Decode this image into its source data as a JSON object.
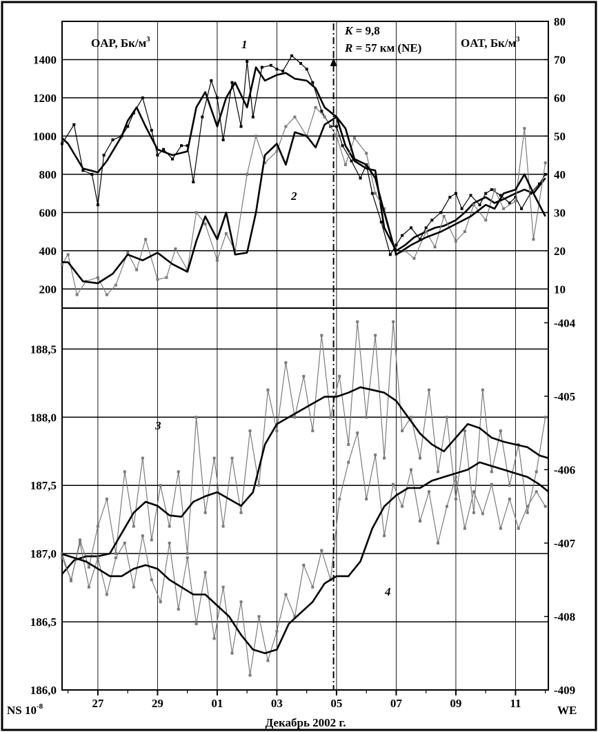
{
  "chart_data": [
    {
      "type": "line",
      "panel": "top",
      "left_axis_label_text": "OAP, Бк/м",
      "left_axis_label_sup": "3",
      "right_axis_label_text": "OAT, Бк/м",
      "right_axis_label_sup": "3",
      "annotation_line1_var": "K",
      "annotation_line1_rest": " = 9,8",
      "annotation_line2_var": "R",
      "annotation_line2_rest": " = 57 км (NE)",
      "curve_label_1": "1",
      "curve_label_2": "2",
      "y_left_ticks": [
        "200",
        "400",
        "600",
        "800",
        "1000",
        "1200",
        "1400"
      ],
      "y_left_lim": [
        100,
        1600
      ],
      "y_right_ticks": [
        "10",
        "20",
        "30",
        "40",
        "50",
        "60",
        "70",
        "80"
      ],
      "y_right_lim": [
        5,
        80
      ],
      "x_lim": [
        25.8,
        42.1
      ],
      "grid": true,
      "series": [
        {
          "id": "1-raw",
          "x": [
            25.8,
            26.2,
            26.5,
            26.8,
            27.0,
            27.2,
            27.5,
            27.8,
            28.0,
            28.2,
            28.5,
            28.8,
            29.0,
            29.2,
            29.5,
            29.8,
            30.0,
            30.2,
            30.5,
            30.8,
            31.0,
            31.2,
            31.5,
            31.8,
            32.0,
            32.2,
            32.5,
            32.8,
            33.0,
            33.2,
            33.5,
            33.8,
            34.0,
            34.2,
            34.5,
            34.8,
            35.0,
            35.2,
            35.5,
            35.8,
            36.0,
            36.2,
            36.5,
            36.8,
            37.0,
            37.2,
            37.5,
            37.8,
            38.0,
            38.2,
            38.5,
            38.8,
            39.0,
            39.2,
            39.5,
            39.8,
            40.0,
            40.2,
            40.5,
            40.8,
            41.0,
            41.2,
            41.5,
            41.8,
            42.0
          ],
          "y": [
            960,
            1060,
            820,
            800,
            640,
            900,
            980,
            1000,
            1050,
            1120,
            1200,
            1030,
            900,
            930,
            880,
            950,
            950,
            760,
            1100,
            1290,
            1200,
            980,
            1280,
            1050,
            1390,
            1100,
            1360,
            1370,
            1350,
            1340,
            1420,
            1380,
            1350,
            1280,
            1130,
            1050,
            1050,
            950,
            870,
            780,
            850,
            700,
            550,
            380,
            430,
            480,
            520,
            460,
            520,
            560,
            600,
            680,
            700,
            620,
            690,
            640,
            700,
            720,
            690,
            650,
            680,
            620,
            700,
            750,
            800
          ],
          "color": "#000000"
        },
        {
          "id": "1-smooth",
          "x": [
            25.8,
            26.0,
            26.5,
            27.0,
            27.3,
            27.8,
            28.0,
            28.3,
            28.6,
            29.0,
            29.5,
            30.0,
            30.3,
            30.6,
            31.0,
            31.3,
            31.6,
            32.0,
            32.3,
            32.6,
            33.0,
            33.3,
            33.6,
            34.0,
            34.3,
            34.6,
            35.0,
            35.3,
            35.6,
            36.0,
            36.3,
            36.6,
            37.0,
            37.3,
            37.6,
            38.0,
            38.3,
            38.6,
            39.0,
            39.3,
            39.6,
            40.0,
            40.3,
            40.6,
            41.0,
            41.3,
            41.6,
            42.0
          ],
          "y": [
            990,
            960,
            830,
            810,
            870,
            1000,
            1080,
            1150,
            1050,
            930,
            900,
            920,
            1150,
            1230,
            1050,
            1200,
            1280,
            1150,
            1360,
            1290,
            1320,
            1330,
            1300,
            1290,
            1250,
            1150,
            1100,
            950,
            870,
            830,
            820,
            520,
            400,
            430,
            470,
            500,
            520,
            530,
            560,
            600,
            650,
            680,
            650,
            670,
            700,
            720,
            700,
            780
          ],
          "color": "#000000"
        },
        {
          "id": "2-raw",
          "x": [
            25.8,
            26.0,
            26.3,
            26.6,
            27.0,
            27.3,
            27.6,
            28.0,
            28.3,
            28.6,
            29.0,
            29.3,
            29.6,
            30.0,
            30.3,
            30.6,
            31.0,
            31.3,
            31.6,
            32.0,
            32.3,
            32.6,
            33.0,
            33.3,
            33.6,
            34.0,
            34.3,
            34.6,
            35.0,
            35.3,
            35.6,
            36.0,
            36.3,
            36.6,
            37.0,
            37.3,
            37.6,
            38.0,
            38.3,
            38.6,
            39.0,
            39.3,
            39.6,
            40.0,
            40.3,
            40.6,
            41.0,
            41.3,
            41.6,
            42.0
          ],
          "y": [
            330,
            380,
            170,
            240,
            260,
            170,
            220,
            390,
            300,
            460,
            250,
            260,
            410,
            300,
            600,
            540,
            350,
            490,
            400,
            800,
            1000,
            860,
            920,
            1050,
            1100,
            1000,
            1150,
            1100,
            1000,
            850,
            990,
            910,
            700,
            620,
            380,
            400,
            360,
            500,
            420,
            580,
            450,
            500,
            640,
            560,
            720,
            620,
            660,
            1040,
            460,
            860
          ],
          "color": "#7a7a7a"
        },
        {
          "id": "2-smooth",
          "x": [
            25.8,
            26.0,
            26.5,
            27.0,
            27.5,
            28.0,
            28.5,
            29.0,
            29.5,
            30.0,
            30.3,
            30.6,
            31.0,
            31.3,
            31.6,
            32.0,
            32.3,
            32.6,
            33.0,
            33.3,
            33.6,
            34.0,
            34.3,
            34.6,
            35.0,
            35.3,
            35.6,
            36.0,
            36.3,
            36.6,
            37.0,
            37.5,
            38.0,
            38.5,
            39.0,
            39.5,
            40.0,
            40.3,
            40.6,
            41.0,
            41.3,
            41.6,
            42.0
          ],
          "y": [
            340,
            340,
            240,
            230,
            280,
            380,
            350,
            390,
            330,
            290,
            450,
            580,
            460,
            600,
            380,
            390,
            600,
            900,
            960,
            850,
            1020,
            1000,
            940,
            1060,
            1100,
            1040,
            880,
            850,
            780,
            600,
            380,
            430,
            470,
            500,
            540,
            580,
            640,
            620,
            700,
            720,
            800,
            700,
            580
          ],
          "color": "#000000"
        }
      ]
    },
    {
      "type": "line",
      "panel": "bottom",
      "left_axis_label": "NS 10",
      "left_axis_label_sup": "-8",
      "right_axis_label": "WE",
      "x_axis_label": "Декабрь 2002 г.",
      "x_tick_labels": [
        "27",
        "29",
        "01",
        "03",
        "05",
        "07",
        "09",
        "11"
      ],
      "x_tick_values": [
        27,
        29,
        31,
        33,
        35,
        37,
        39,
        41
      ],
      "y_left_ticks": [
        "186,0",
        "186,5",
        "187,0",
        "187,5",
        "188,0",
        "188,5"
      ],
      "y_left_lim": [
        186.0,
        188.8
      ],
      "y_right_ticks": [
        "-404",
        "-405",
        "-406",
        "-407",
        "-408",
        "-409"
      ],
      "y_right_lim": [
        -409,
        -403.8
      ],
      "x_lim": [
        25.8,
        42.1
      ],
      "event_marker_x": 34.9,
      "curve_label_3": "3",
      "curve_label_4": "4",
      "grid": true,
      "series": [
        {
          "id": "3-raw",
          "x": [
            25.8,
            26.1,
            26.4,
            26.7,
            27.0,
            27.3,
            27.6,
            27.9,
            28.2,
            28.5,
            28.8,
            29.1,
            29.4,
            29.7,
            30.0,
            30.3,
            30.6,
            30.9,
            31.2,
            31.5,
            31.8,
            32.1,
            32.4,
            32.7,
            33.0,
            33.3,
            33.6,
            33.9,
            34.2,
            34.5,
            34.8,
            35.1,
            35.4,
            35.7,
            36.0,
            36.3,
            36.6,
            36.9,
            37.2,
            37.5,
            37.8,
            38.1,
            38.4,
            38.7,
            39.0,
            39.3,
            39.6,
            39.9,
            40.2,
            40.5,
            40.8,
            41.1,
            41.4,
            41.7,
            42.0
          ],
          "y": [
            187.0,
            186.8,
            187.1,
            186.9,
            187.2,
            187.4,
            187.0,
            187.6,
            187.2,
            187.7,
            187.1,
            187.5,
            187.2,
            187.6,
            187.0,
            188.0,
            187.3,
            187.7,
            187.2,
            187.7,
            187.3,
            187.9,
            187.5,
            188.2,
            187.9,
            188.4,
            188.0,
            188.3,
            187.9,
            188.6,
            188.0,
            188.3,
            187.8,
            188.7,
            188.0,
            188.6,
            187.7,
            188.7,
            187.9,
            188.0,
            187.7,
            188.2,
            187.6,
            188.0,
            187.4,
            187.9,
            187.3,
            188.2,
            187.6,
            187.9,
            187.5,
            187.8,
            187.3,
            187.6,
            188.0
          ],
          "color": "#7a7a7a"
        },
        {
          "id": "3-smooth",
          "x": [
            25.8,
            26.2,
            26.6,
            27.0,
            27.4,
            27.8,
            28.2,
            28.6,
            29.0,
            29.4,
            29.8,
            30.2,
            30.6,
            31.0,
            31.4,
            31.8,
            32.2,
            32.6,
            33.0,
            33.4,
            33.8,
            34.2,
            34.6,
            35.0,
            35.4,
            35.8,
            36.2,
            36.6,
            37.0,
            37.4,
            37.8,
            38.2,
            38.6,
            39.0,
            39.4,
            39.8,
            40.2,
            40.6,
            41.0,
            41.4,
            41.8,
            42.1
          ],
          "y": [
            186.85,
            186.95,
            186.98,
            186.98,
            187.0,
            187.15,
            187.3,
            187.38,
            187.35,
            187.28,
            187.27,
            187.38,
            187.42,
            187.45,
            187.4,
            187.35,
            187.45,
            187.8,
            187.95,
            188.0,
            188.05,
            188.1,
            188.15,
            188.15,
            188.18,
            188.22,
            188.2,
            188.18,
            188.12,
            188.0,
            187.88,
            187.8,
            187.75,
            187.85,
            187.95,
            187.92,
            187.85,
            187.82,
            187.8,
            187.78,
            187.72,
            187.7
          ],
          "color": "#000000"
        },
        {
          "id": "4-raw",
          "x": [
            25.8,
            26.1,
            26.4,
            26.7,
            27.0,
            27.3,
            27.6,
            27.9,
            28.2,
            28.5,
            28.8,
            29.1,
            29.4,
            29.7,
            30.0,
            30.3,
            30.6,
            30.9,
            31.2,
            31.5,
            31.8,
            32.1,
            32.4,
            32.7,
            33.0,
            33.3,
            33.6,
            33.9,
            34.2,
            34.5,
            34.8,
            35.1,
            35.4,
            35.7,
            36.0,
            36.3,
            36.6,
            36.9,
            37.2,
            37.5,
            37.8,
            38.1,
            38.4,
            38.7,
            39.0,
            39.3,
            39.6,
            39.9,
            40.2,
            40.5,
            40.8,
            41.1,
            41.4,
            41.7,
            42.0
          ],
          "y": [
            -407.2,
            -407.5,
            -407.0,
            -407.6,
            -407.2,
            -407.7,
            -407.2,
            -407.0,
            -407.6,
            -406.9,
            -407.5,
            -407.8,
            -407.0,
            -407.9,
            -407.2,
            -408.1,
            -407.4,
            -408.3,
            -407.6,
            -408.5,
            -407.8,
            -408.8,
            -408.0,
            -408.6,
            -408.2,
            -407.7,
            -408.0,
            -407.3,
            -407.6,
            -407.1,
            -407.5,
            -406.4,
            -405.9,
            -405.5,
            -406.4,
            -405.8,
            -406.9,
            -406.2,
            -406.5,
            -406.0,
            -406.7,
            -406.3,
            -407.0,
            -406.5,
            -406.1,
            -406.8,
            -406.3,
            -406.6,
            -406.2,
            -406.8,
            -406.4,
            -406.8,
            -406.5,
            -406.3,
            -406.5
          ],
          "color": "#7a7a7a"
        },
        {
          "id": "4-smooth",
          "x": [
            25.8,
            26.2,
            26.6,
            27.0,
            27.4,
            27.8,
            28.2,
            28.6,
            29.0,
            29.4,
            29.8,
            30.2,
            30.6,
            31.0,
            31.4,
            31.8,
            32.2,
            32.6,
            33.0,
            33.4,
            33.8,
            34.2,
            34.6,
            35.0,
            35.4,
            35.8,
            36.2,
            36.6,
            37.0,
            37.4,
            37.8,
            38.2,
            38.6,
            39.0,
            39.4,
            39.8,
            40.2,
            40.6,
            41.0,
            41.4,
            41.8,
            42.1
          ],
          "y": [
            -407.15,
            -407.2,
            -407.25,
            -407.35,
            -407.45,
            -407.45,
            -407.35,
            -407.3,
            -407.35,
            -407.5,
            -407.6,
            -407.7,
            -407.7,
            -407.85,
            -408.0,
            -408.25,
            -408.45,
            -408.5,
            -408.45,
            -408.1,
            -407.95,
            -407.8,
            -407.55,
            -407.45,
            -407.45,
            -407.25,
            -406.8,
            -406.5,
            -406.35,
            -406.25,
            -406.25,
            -406.15,
            -406.1,
            -406.05,
            -406.0,
            -405.9,
            -405.95,
            -406.0,
            -406.05,
            -406.1,
            -406.2,
            -406.3
          ],
          "color": "#000000"
        }
      ]
    }
  ]
}
